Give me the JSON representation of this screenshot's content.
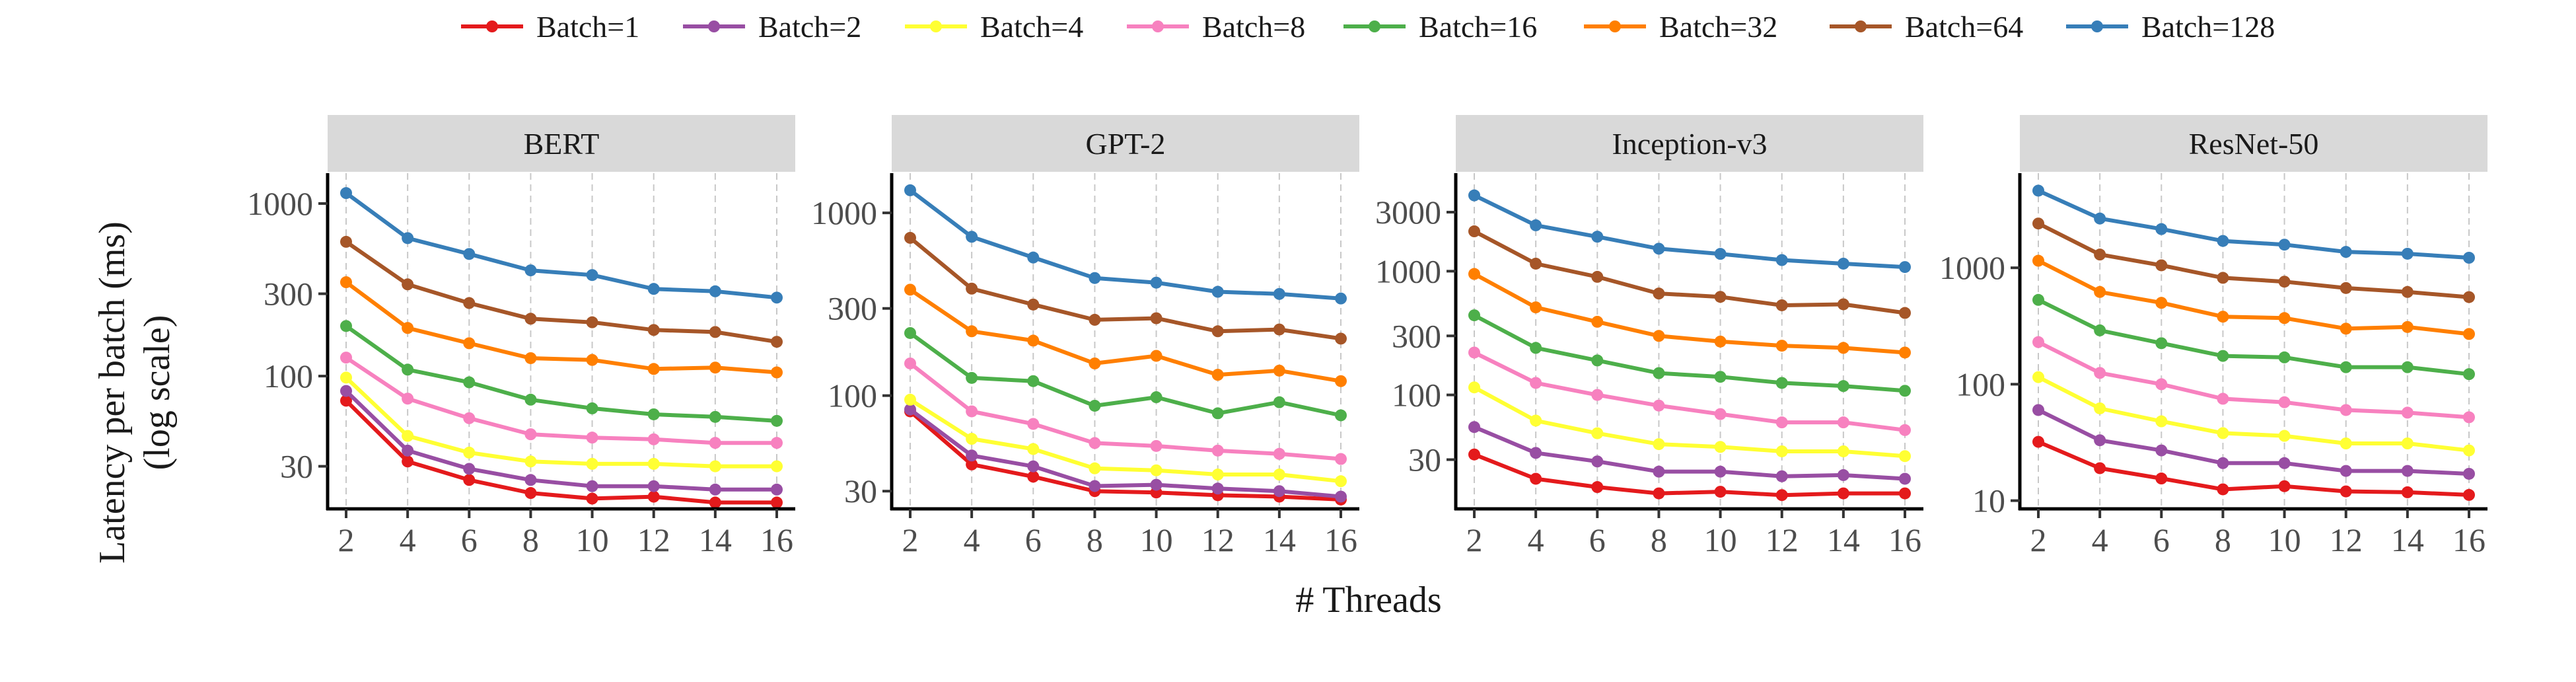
{
  "chart_data": {
    "type": "line",
    "xlabel": "# Threads",
    "ylabel": "Latency per batch (ms)",
    "ylabel_sub": "(log scale)",
    "y_scale": "log",
    "x": [
      2,
      4,
      6,
      8,
      10,
      12,
      14,
      16
    ],
    "x_ticks": [
      "2",
      "4",
      "6",
      "8",
      "10",
      "12",
      "14",
      "16"
    ],
    "grid": "vertical dashed",
    "legend_position": "top",
    "legend": [
      "Batch=1",
      "Batch=2",
      "Batch=4",
      "Batch=8",
      "Batch=16",
      "Batch=32",
      "Batch=64",
      "Batch=128"
    ],
    "colors": [
      "#e41a1c",
      "#984ea3",
      "#ffff33",
      "#f781bf",
      "#4daf4a",
      "#ff7f00",
      "#a65628",
      "#377eb8"
    ],
    "panels": [
      {
        "title": "BERT",
        "ylim": [
          17,
          1500
        ],
        "y_ticks": [
          30,
          100,
          300,
          1000
        ],
        "y_tick_labels": [
          "30",
          "100",
          "300",
          "1000"
        ],
        "series": [
          {
            "name": "Batch=1",
            "values": [
              72,
              32,
              25,
              21,
              19.5,
              20,
              18.5,
              18.5
            ]
          },
          {
            "name": "Batch=2",
            "values": [
              82,
              37,
              29,
              25,
              23,
              23,
              22,
              22
            ]
          },
          {
            "name": "Batch=4",
            "values": [
              98,
              45,
              36,
              32,
              31,
              31,
              30,
              30
            ]
          },
          {
            "name": "Batch=8",
            "values": [
              128,
              74,
              57,
              46,
              44,
              43,
              41,
              41
            ]
          },
          {
            "name": "Batch=16",
            "values": [
              195,
              109,
              92,
              73,
              65,
              60,
              58,
              55
            ]
          },
          {
            "name": "Batch=32",
            "values": [
              350,
              190,
              155,
              127,
              124,
              110,
              112,
              105
            ]
          },
          {
            "name": "Batch=64",
            "values": [
              600,
              340,
              265,
              215,
              205,
              185,
              180,
              158
            ]
          },
          {
            "name": "Batch=128",
            "values": [
              1150,
              630,
              510,
              410,
              385,
              320,
              310,
              285
            ]
          }
        ]
      },
      {
        "title": "GPT-2",
        "ylim": [
          24,
          1650
        ],
        "y_ticks": [
          30,
          100,
          300,
          1000
        ],
        "y_tick_labels": [
          "30",
          "100",
          "300",
          "1000"
        ],
        "series": [
          {
            "name": "Batch=1",
            "values": [
              82,
              42,
              36,
              30,
              29.5,
              28.5,
              28,
              27
            ]
          },
          {
            "name": "Batch=2",
            "values": [
              84,
              47,
              41,
              32,
              32.5,
              31,
              30,
              28
            ]
          },
          {
            "name": "Batch=4",
            "values": [
              95,
              58,
              51,
              40,
              39,
              37,
              37,
              34
            ]
          },
          {
            "name": "Batch=8",
            "values": [
              150,
              82,
              70,
              55,
              53,
              50,
              48,
              45
            ]
          },
          {
            "name": "Batch=16",
            "values": [
              220,
              125,
              120,
              88,
              98,
              80,
              92,
              78
            ]
          },
          {
            "name": "Batch=32",
            "values": [
              380,
              225,
              200,
              150,
              165,
              130,
              137,
              120
            ]
          },
          {
            "name": "Batch=64",
            "values": [
              730,
              385,
              315,
              260,
              265,
              225,
              230,
              205
            ]
          },
          {
            "name": "Batch=128",
            "values": [
              1330,
              740,
              570,
              440,
              415,
              370,
              360,
              340
            ]
          }
        ]
      },
      {
        "title": "Inception-v3",
        "ylim": [
          12,
          6200
        ],
        "y_ticks": [
          30,
          100,
          300,
          1000,
          3000
        ],
        "y_tick_labels": [
          "30",
          "100",
          "300",
          "1000",
          "3000"
        ],
        "series": [
          {
            "name": "Batch=1",
            "values": [
              33,
              21,
              18,
              16,
              16.5,
              15.5,
              16,
              16
            ]
          },
          {
            "name": "Batch=2",
            "values": [
              55,
              34,
              29,
              24,
              24,
              22,
              22.5,
              21
            ]
          },
          {
            "name": "Batch=4",
            "values": [
              115,
              62,
              49,
              40,
              38,
              35,
              35,
              32
            ]
          },
          {
            "name": "Batch=8",
            "values": [
              220,
              125,
              100,
              82,
              70,
              60,
              60,
              52
            ]
          },
          {
            "name": "Batch=16",
            "values": [
              440,
              240,
              190,
              150,
              140,
              125,
              118,
              108
            ]
          },
          {
            "name": "Batch=32",
            "values": [
              950,
              510,
              390,
              300,
              270,
              250,
              240,
              220
            ]
          },
          {
            "name": "Batch=64",
            "values": [
              2100,
              1150,
              900,
              660,
              620,
              530,
              540,
              460
            ]
          },
          {
            "name": "Batch=128",
            "values": [
              4100,
              2350,
              1900,
              1520,
              1380,
              1230,
              1150,
              1080
            ]
          }
        ]
      },
      {
        "title": "ResNet-50",
        "ylim": [
          8.5,
          6500
        ],
        "y_ticks": [
          10,
          100,
          1000
        ],
        "y_tick_labels": [
          "10",
          "100",
          "1000"
        ],
        "series": [
          {
            "name": "Batch=1",
            "values": [
              32,
              19,
              15.5,
              12.5,
              13.3,
              12,
              11.8,
              11.2
            ]
          },
          {
            "name": "Batch=2",
            "values": [
              60,
              33,
              27,
              21,
              21,
              18,
              18,
              17
            ]
          },
          {
            "name": "Batch=4",
            "values": [
              115,
              62,
              48,
              38,
              36,
              31,
              31,
              27
            ]
          },
          {
            "name": "Batch=8",
            "values": [
              230,
              125,
              100,
              75,
              70,
              60,
              57,
              52
            ]
          },
          {
            "name": "Batch=16",
            "values": [
              530,
              290,
              225,
              175,
              170,
              140,
              140,
              122
            ]
          },
          {
            "name": "Batch=32",
            "values": [
              1150,
              620,
              500,
              380,
              370,
              300,
              310,
              270
            ]
          },
          {
            "name": "Batch=64",
            "values": [
              2400,
              1300,
              1050,
              820,
              760,
              670,
              620,
              560
            ]
          },
          {
            "name": "Batch=128",
            "values": [
              4600,
              2650,
              2150,
              1700,
              1580,
              1370,
              1320,
              1220
            ]
          }
        ]
      }
    ]
  }
}
